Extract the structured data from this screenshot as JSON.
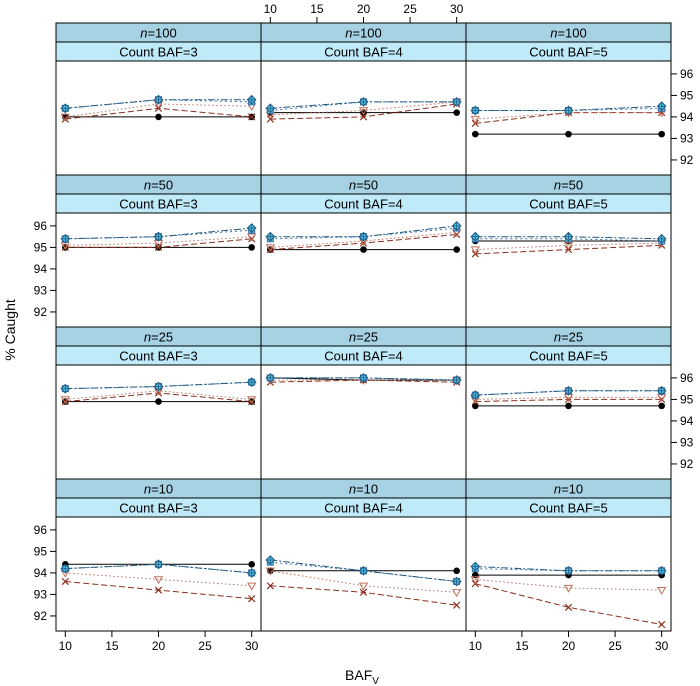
{
  "chart_data": {
    "type": "line",
    "xlabel": "BAF",
    "xlabel_sub": "V",
    "ylabel": "% Caught",
    "x_ticks": [
      10,
      15,
      20,
      25,
      30
    ],
    "y_ticks": [
      92,
      93,
      94,
      95,
      96
    ],
    "xlim": [
      9,
      31
    ],
    "ylim": [
      91.3,
      96.6
    ],
    "grid": false,
    "x": [
      10,
      20,
      30
    ],
    "series_styles": [
      {
        "id": "s1",
        "color": "#000000",
        "dash": "",
        "marker": "circle"
      },
      {
        "id": "s2",
        "color": "#8b2e1c",
        "dash": "6,3",
        "marker": "x"
      },
      {
        "id": "s3",
        "color": "#c0705a",
        "dash": "1.5,2.5",
        "marker": "triangle-down"
      },
      {
        "id": "s4",
        "color": "#3d6ea8",
        "dash": "2,3",
        "marker": "square"
      },
      {
        "id": "s5",
        "color": "#1f5a80",
        "dash": "7,2,2,2",
        "marker": "diamond"
      }
    ],
    "colors": {
      "strip_dark": "#a6d2e4",
      "strip_light": "#bfeaf8",
      "marker_fill": "#52c2e6"
    },
    "rows": [
      {
        "n": "100",
        "panels": [
          {
            "count": "Count BAF=3",
            "series": [
              [
                94.0,
                94.0,
                94.0
              ],
              [
                93.9,
                94.4,
                94.0
              ],
              [
                94.0,
                94.6,
                94.5
              ],
              [
                94.4,
                94.8,
                94.7
              ],
              [
                94.4,
                94.8,
                94.8
              ]
            ]
          },
          {
            "count": "Count BAF=4",
            "series": [
              [
                94.2,
                94.2,
                94.2
              ],
              [
                93.9,
                94.0,
                94.6
              ],
              [
                94.1,
                94.3,
                94.7
              ],
              [
                94.3,
                94.7,
                94.7
              ],
              [
                94.4,
                94.7,
                94.7
              ]
            ]
          },
          {
            "count": "Count BAF=5",
            "series": [
              [
                93.2,
                93.2,
                93.2
              ],
              [
                93.7,
                94.2,
                94.2
              ],
              [
                93.9,
                94.2,
                94.2
              ],
              [
                94.3,
                94.3,
                94.4
              ],
              [
                94.3,
                94.3,
                94.5
              ]
            ]
          }
        ]
      },
      {
        "n": "50",
        "panels": [
          {
            "count": "Count BAF=3",
            "series": [
              [
                95.0,
                95.0,
                95.0
              ],
              [
                95.0,
                95.0,
                95.4
              ],
              [
                95.1,
                95.2,
                95.5
              ],
              [
                95.4,
                95.5,
                95.8
              ],
              [
                95.4,
                95.5,
                95.9
              ]
            ]
          },
          {
            "count": "Count BAF=4",
            "series": [
              [
                94.9,
                94.9,
                94.9
              ],
              [
                94.9,
                95.2,
                95.6
              ],
              [
                95.0,
                95.3,
                95.7
              ],
              [
                95.4,
                95.5,
                95.9
              ],
              [
                95.5,
                95.5,
                96.0
              ]
            ]
          },
          {
            "count": "Count BAF=5",
            "series": [
              [
                95.3,
                95.3,
                95.3
              ],
              [
                94.7,
                94.9,
                95.1
              ],
              [
                94.9,
                95.1,
                95.2
              ],
              [
                95.4,
                95.4,
                95.3
              ],
              [
                95.5,
                95.5,
                95.4
              ]
            ]
          }
        ]
      },
      {
        "n": "25",
        "panels": [
          {
            "count": "Count BAF=3",
            "series": [
              [
                94.9,
                94.9,
                94.9
              ],
              [
                94.9,
                95.3,
                94.9
              ],
              [
                95.0,
                95.4,
                95.0
              ],
              [
                95.5,
                95.6,
                95.8
              ],
              [
                95.5,
                95.6,
                95.8
              ]
            ]
          },
          {
            "count": "Count BAF=4",
            "series": [
              [
                96.0,
                95.9,
                95.9
              ],
              [
                95.8,
                95.9,
                95.8
              ],
              [
                95.9,
                95.9,
                95.9
              ],
              [
                96.0,
                96.0,
                95.9
              ],
              [
                96.0,
                96.0,
                95.9
              ]
            ]
          },
          {
            "count": "Count BAF=5",
            "series": [
              [
                94.7,
                94.7,
                94.7
              ],
              [
                94.9,
                95.0,
                95.0
              ],
              [
                95.0,
                95.1,
                95.1
              ],
              [
                95.2,
                95.4,
                95.4
              ],
              [
                95.2,
                95.4,
                95.4
              ]
            ]
          }
        ]
      },
      {
        "n": "10",
        "panels": [
          {
            "count": "Count BAF=3",
            "series": [
              [
                94.4,
                94.4,
                94.4
              ],
              [
                93.6,
                93.2,
                92.8
              ],
              [
                94.0,
                93.7,
                93.4
              ],
              [
                94.2,
                94.4,
                94.0
              ],
              [
                94.2,
                94.4,
                94.0
              ]
            ]
          },
          {
            "count": "Count BAF=4",
            "series": [
              [
                94.1,
                94.1,
                94.1
              ],
              [
                93.4,
                93.1,
                92.5
              ],
              [
                94.1,
                93.4,
                93.1
              ],
              [
                94.5,
                94.1,
                93.6
              ],
              [
                94.6,
                94.1,
                93.6
              ]
            ]
          },
          {
            "count": "Count BAF=5",
            "series": [
              [
                93.9,
                93.9,
                93.9
              ],
              [
                93.5,
                92.4,
                91.6
              ],
              [
                93.7,
                93.3,
                93.2
              ],
              [
                94.2,
                94.1,
                94.1
              ],
              [
                94.3,
                94.1,
                94.1
              ]
            ]
          }
        ]
      }
    ]
  }
}
